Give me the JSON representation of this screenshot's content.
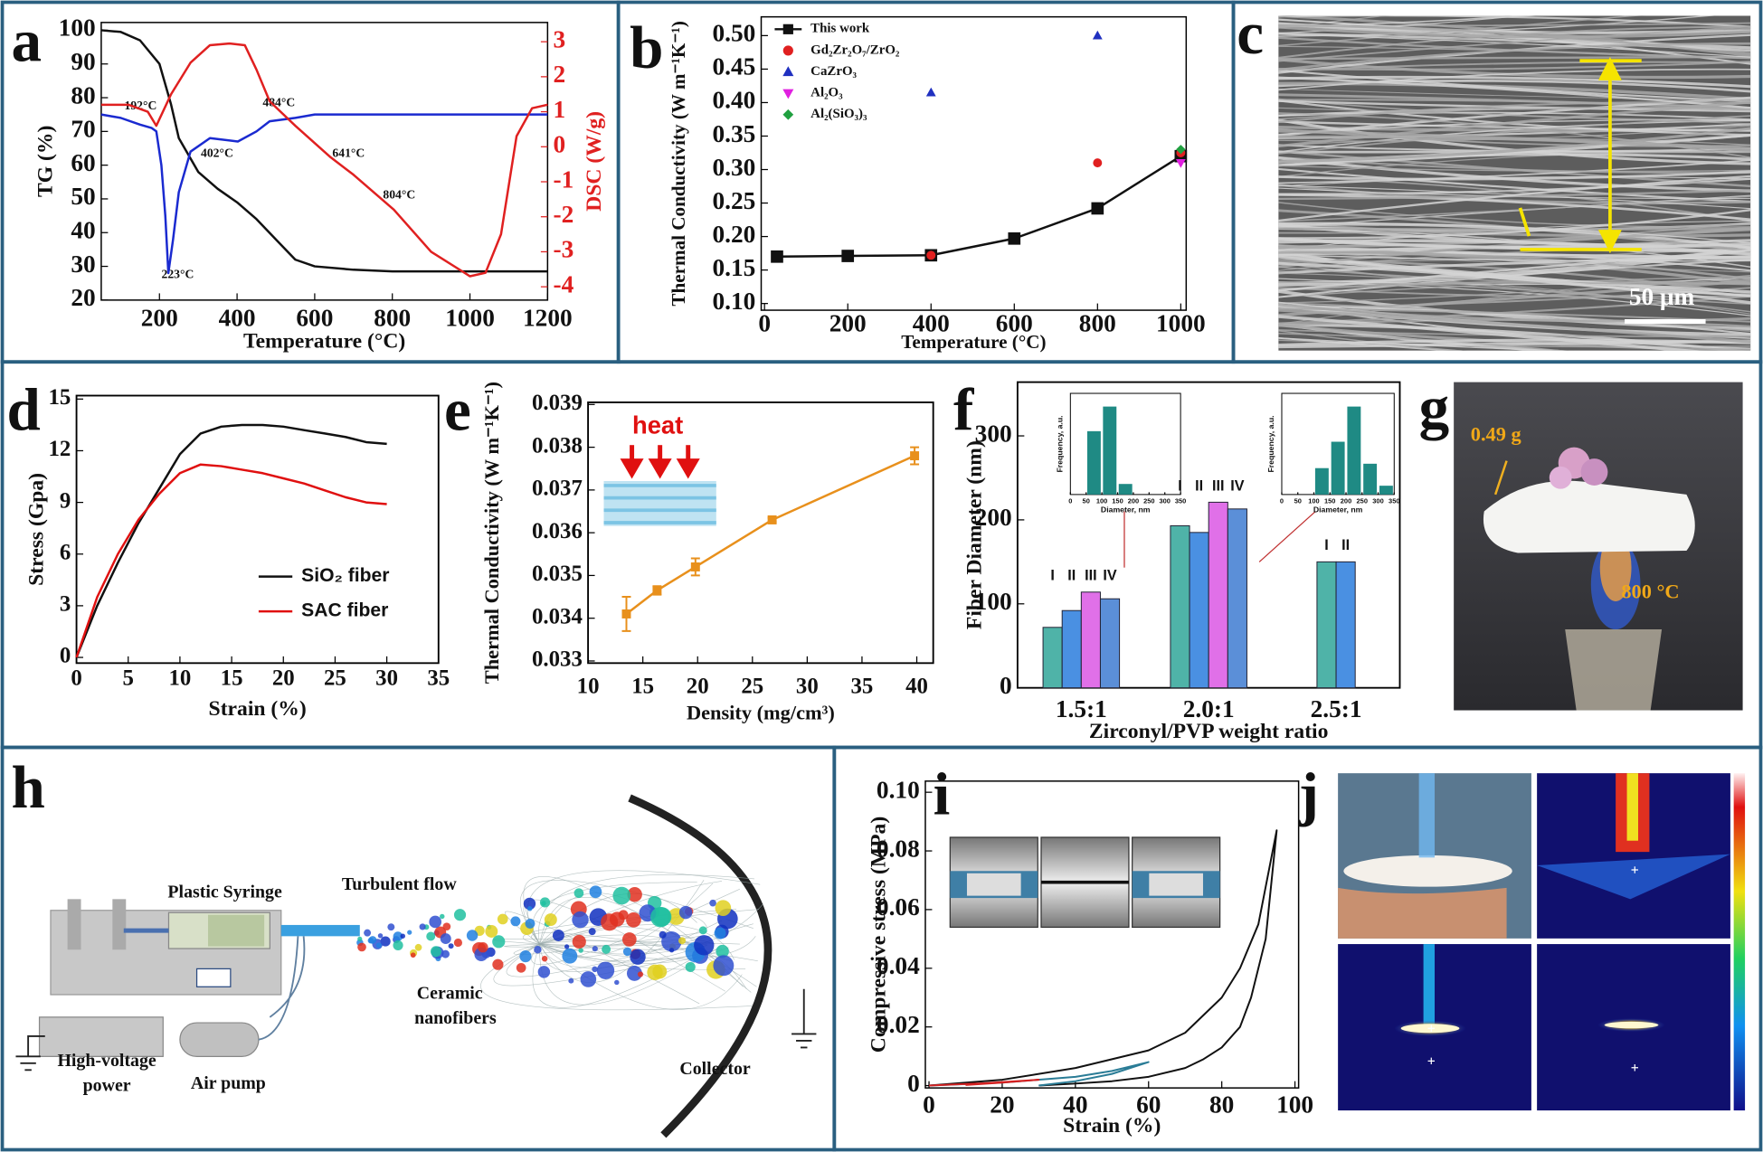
{
  "panel_labels": [
    "a",
    "b",
    "c",
    "d",
    "e",
    "f",
    "g",
    "h",
    "i",
    "j"
  ],
  "panel_c": {
    "scale_bar": "50 μm"
  },
  "panel_g": {
    "mass": "0.49 g",
    "temperature": "800 °C"
  },
  "panel_h": {
    "labels": [
      "Plastic Syringe",
      "Turbulent flow",
      "Ceramic",
      "nanofibers",
      "High-voltage",
      "power",
      "Air pump",
      "Collector"
    ]
  },
  "chart_data": [
    {
      "type": "line",
      "xlabel": "Temperature (°C)",
      "ylabel": "TG (%)",
      "y2label": "DSC (W/g)",
      "xlim": [
        50,
        1200
      ],
      "ylim": [
        20,
        102.3
      ],
      "y2lim": [
        -4.38,
        3.55
      ],
      "xticks": [
        200,
        400,
        600,
        800,
        1000,
        1200
      ],
      "yticks": [
        20,
        30,
        40,
        50,
        60,
        70,
        80,
        90,
        100
      ],
      "y2ticks": [
        -4,
        -3,
        -2,
        -1,
        0,
        1,
        2,
        3
      ],
      "series": [
        {
          "color": "#111111",
          "x": [
            50,
            100,
            150,
            200,
            230,
            250,
            300,
            350,
            400,
            450,
            500,
            550,
            600,
            700,
            800,
            900,
            1000,
            1100,
            1200
          ],
          "values": [
            100,
            99.5,
            97,
            90,
            78,
            68,
            58,
            53,
            49,
            44,
            38,
            32,
            30,
            29,
            28.5,
            28.5,
            28.5,
            28.5,
            28.5
          ]
        },
        {
          "color": "#1a2ad0",
          "x": [
            50,
            100,
            150,
            180,
            192,
            205,
            215,
            223,
            235,
            250,
            280,
            330,
            402,
            450,
            484,
            550,
            600,
            800,
            1000,
            1200
          ],
          "values": [
            75,
            74,
            72,
            71,
            70,
            60,
            45,
            28,
            38,
            52,
            64,
            68,
            67,
            70,
            73,
            74,
            75,
            75,
            75,
            75
          ]
        },
        {
          "color": "#e02020",
          "axis": "y2",
          "x": [
            50,
            120,
            170,
            192,
            230,
            280,
            330,
            380,
            420,
            450,
            484,
            550,
            641,
            700,
            804,
            900,
            1000,
            1040,
            1080,
            1120,
            1160,
            1200
          ],
          "values": [
            1.2,
            1.2,
            1.0,
            0.6,
            1.5,
            2.4,
            2.9,
            2.95,
            2.9,
            2.2,
            1.3,
            0.6,
            -0.3,
            -0.8,
            -1.8,
            -3.0,
            -3.7,
            -3.6,
            -2.5,
            0.3,
            1.1,
            1.2
          ]
        }
      ],
      "annotations": [
        "192°C",
        "223°C",
        "402°C",
        "484°C",
        "641°C",
        "804°C"
      ]
    },
    {
      "type": "line",
      "xlabel": "Temperature (°C)",
      "ylabel": "Thermal Conductivity (W m⁻¹K⁻¹)",
      "legend": "upper left",
      "xlim": [
        -8,
        1013
      ],
      "ylim": [
        0.09,
        0.528
      ],
      "xticks": [
        0,
        200,
        400,
        600,
        800,
        1000
      ],
      "yticks": [
        {
          "value": 0.1,
          "label": "0.10"
        },
        0.15,
        {
          "value": 0.2,
          "label": "0.20"
        },
        0.25,
        {
          "value": 0.3,
          "label": "0.30"
        },
        0.35,
        {
          "value": 0.4,
          "label": "0.40"
        },
        0.45,
        {
          "value": 0.5,
          "label": "0.50"
        }
      ],
      "series": [
        {
          "name": "This work",
          "color": "#111111",
          "marker": "square",
          "line": true,
          "x": [
            30,
            200,
            400,
            600,
            800,
            1000
          ],
          "values": [
            0.17,
            0.171,
            0.172,
            0.197,
            0.242,
            0.32
          ]
        },
        {
          "name": "Gd₂Zr₂O₇/ZrO₂",
          "color": "#e02020",
          "marker": "circle",
          "x": [
            400,
            800,
            1000
          ],
          "values": [
            0.172,
            0.31,
            0.325
          ]
        },
        {
          "name": "CaZrO₃",
          "color": "#2030c0",
          "marker": "triangle",
          "x": [
            400,
            800
          ],
          "values": [
            0.415,
            0.5
          ]
        },
        {
          "name": "Al₂O₃",
          "color": "#e020e0",
          "marker": "triangle-down",
          "x": [
            1000
          ],
          "values": [
            0.31
          ]
        },
        {
          "name": "Al₂(SiO₃)₃",
          "color": "#20a040",
          "marker": "diamond",
          "x": [
            1000
          ],
          "values": [
            0.33
          ]
        }
      ]
    },
    {
      "type": "line",
      "xlabel": "Strain (%)",
      "ylabel": "Stress (Gpa)",
      "legend": "center right",
      "xlim": [
        0,
        35
      ],
      "ylim": [
        -0.33,
        15.2
      ],
      "xticks": [
        0,
        5,
        10,
        15,
        20,
        25,
        30,
        35
      ],
      "yticks": [
        0,
        3,
        6,
        9,
        12,
        15
      ],
      "series": [
        {
          "name": "SiO₂ fiber",
          "color": "#111111",
          "x": [
            0,
            2,
            4,
            6,
            8,
            10,
            12,
            14,
            16,
            18,
            20,
            22,
            24,
            26,
            28,
            30
          ],
          "values": [
            0,
            3,
            5.5,
            7.8,
            9.8,
            11.8,
            13,
            13.4,
            13.5,
            13.5,
            13.4,
            13.2,
            13,
            12.8,
            12.5,
            12.4
          ]
        },
        {
          "name": "SAC fiber",
          "color": "#e01010",
          "x": [
            0,
            2,
            4,
            6,
            8,
            10,
            12,
            14,
            16,
            18,
            20,
            22,
            24,
            26,
            28,
            30
          ],
          "values": [
            0,
            3.5,
            6,
            8,
            9.5,
            10.7,
            11.2,
            11.1,
            10.9,
            10.7,
            10.4,
            10.1,
            9.7,
            9.3,
            9,
            8.9
          ]
        }
      ]
    },
    {
      "type": "line",
      "xlabel": "Density (mg/cm³)",
      "ylabel": "Thermal Conductivity (W m⁻¹K⁻¹)",
      "xlim": [
        10,
        41.5
      ],
      "ylim": [
        0.03295,
        0.03905
      ],
      "xticks": [
        10,
        15,
        20,
        25,
        30,
        35,
        40
      ],
      "yticks": [
        0.033,
        0.034,
        0.035,
        0.036,
        0.037,
        0.038,
        0.039
      ],
      "series": [
        {
          "color": "#e8901c",
          "marker": "square",
          "line": true,
          "x": [
            13.5,
            16.3,
            19.8,
            26.8,
            39.8
          ],
          "values": [
            0.0341,
            0.03465,
            0.0352,
            0.0363,
            0.0378
          ],
          "errors": [
            0.0004,
            0.0001,
            0.0002,
            5e-05,
            0.0002
          ]
        }
      ],
      "annotations": [
        "heat"
      ]
    },
    {
      "type": "bar",
      "xlabel": "Zirconyl/PVP weight ratio",
      "ylabel": "Fiber Diameter (nm)",
      "categories": [
        "1.5:1",
        "2.0:1",
        "2.5:1"
      ],
      "ylim": [
        0,
        364
      ],
      "yticks": [
        0,
        100,
        200,
        300
      ],
      "series": [
        {
          "name": "I",
          "color": "#4fb3a8",
          "values": [
            72,
            193,
            150
          ]
        },
        {
          "name": "II",
          "color": "#4a90e2",
          "values": [
            92,
            185,
            150
          ]
        },
        {
          "name": "III",
          "color": "#e070e8",
          "values": [
            114,
            221,
            null
          ]
        },
        {
          "name": "IV",
          "color": "#5b8fd8",
          "values": [
            106,
            213,
            null
          ]
        }
      ]
    },
    {
      "type": "bar",
      "xlabel": "Diameter, nm",
      "ylabel": "Frequency, a.u.",
      "color": "#1f8a84",
      "x": [
        75,
        125,
        175
      ],
      "values": [
        0.72,
        1,
        0.12
      ],
      "xlim": [
        0,
        350
      ],
      "ylim": [
        0,
        1.15
      ],
      "xticks": [
        0,
        50,
        100,
        150,
        200,
        250,
        300,
        350
      ]
    },
    {
      "type": "bar",
      "xlabel": "Diameter, nm",
      "ylabel": "Frequency, a.u.",
      "color": "#1f8a84",
      "x": [
        125,
        175,
        225,
        275,
        325
      ],
      "values": [
        0.3,
        0.6,
        1,
        0.35,
        0.1
      ],
      "xlim": [
        0,
        350
      ],
      "ylim": [
        0,
        1.15
      ],
      "xticks": [
        0,
        50,
        100,
        150,
        200,
        250,
        300,
        350
      ]
    },
    {
      "type": "line",
      "xlabel": "Strain (%)",
      "ylabel": "Compressive stress (MPa)",
      "xlim": [
        -1,
        101
      ],
      "ylim": [
        -0.0008,
        0.1038
      ],
      "xticks": [
        0,
        20,
        40,
        60,
        80,
        100
      ],
      "yticks": [
        0,
        0.02,
        0.04,
        0.06,
        0.08,
        {
          "value": 0.1,
          "label": "0.10"
        }
      ],
      "series": [
        {
          "color": "#111111",
          "x": [
            0,
            20,
            40,
            60,
            70,
            80,
            85,
            90,
            95,
            92,
            88,
            85,
            80,
            75,
            70,
            60,
            50,
            40,
            30
          ],
          "values": [
            0,
            0.002,
            0.006,
            0.012,
            0.018,
            0.03,
            0.04,
            0.055,
            0.087,
            0.05,
            0.03,
            0.02,
            0.013,
            0.009,
            0.006,
            0.003,
            0.0015,
            0.0007,
            0
          ]
        },
        {
          "color": "#2a7c96",
          "x": [
            0,
            20,
            40,
            50,
            60,
            50,
            40,
            30
          ],
          "values": [
            0,
            0.001,
            0.003,
            0.005,
            0.008,
            0.004,
            0.0015,
            0
          ]
        },
        {
          "color": "#d42020",
          "x": [
            0,
            15,
            30,
            20,
            10
          ],
          "values": [
            0,
            0.0008,
            0.002,
            0.001,
            0.0002
          ]
        }
      ]
    }
  ]
}
